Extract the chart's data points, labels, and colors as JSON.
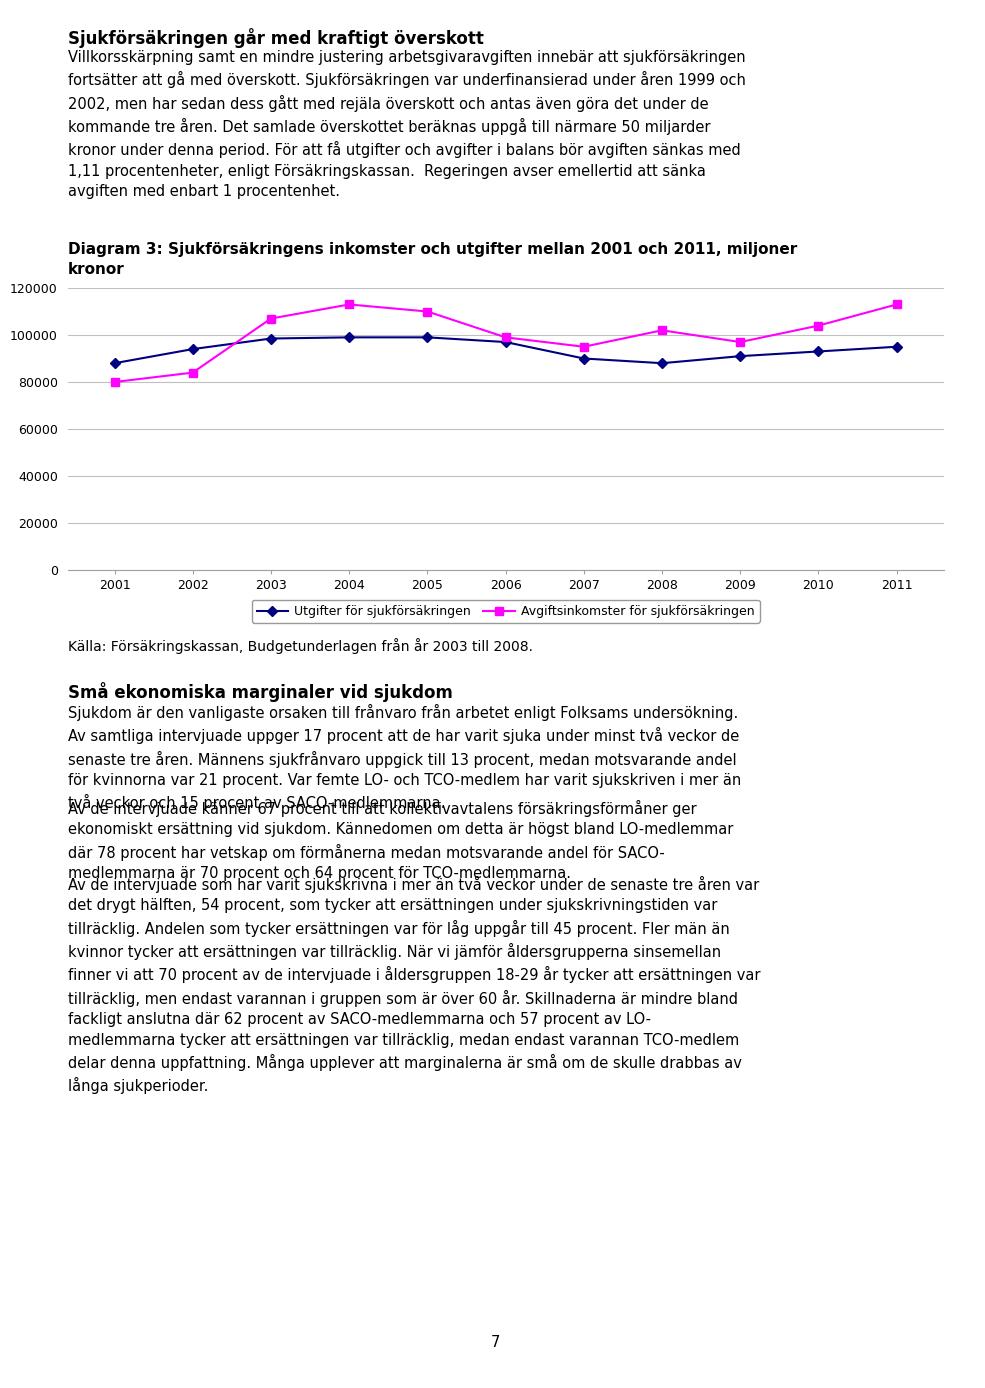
{
  "title_bold": "Sjukförsäkringen går med kraftigt överskott",
  "body_text_1": "Villkorsskärpning samt en mindre justering arbetsgivaravgiften innebär att sjukförsäkringen\nfortsätter att gå med överskott. Sjukförsäkringen var underfinansierad under åren 1999 och\n2002, men har sedan dess gått med rejäla överskott och antas även göra det under de\nkommande tre åren. Det samlade överskottet beräknas uppgå till närmare 50 miljarder\nkronor under denna period. För att få utgifter och avgifter i balans bör avgiften sänkas med\n1,11 procentenheter, enligt Försäkringskassan.  Regeringen avser emellertid att sänka\navgiften med enbart 1 procentenhet.",
  "chart_title_line1": "Diagram 3: Sjukförsäkringens inkomster och utgifter mellan 2001 och 2011, miljoner",
  "chart_title_line2": "kronor",
  "years": [
    2001,
    2002,
    2003,
    2004,
    2005,
    2006,
    2007,
    2008,
    2009,
    2010,
    2011
  ],
  "utgifter_data": [
    88000,
    94000,
    98500,
    99000,
    99000,
    97000,
    90000,
    88000,
    91000,
    93000,
    95000
  ],
  "avgift_data": [
    80000,
    84000,
    107000,
    113000,
    110000,
    99000,
    95000,
    102000,
    97000,
    104000,
    113000
  ],
  "utgifter_color": "#000080",
  "avgift_color": "#FF00FF",
  "ylim_min": 0,
  "ylim_max": 120000,
  "yticks": [
    0,
    20000,
    40000,
    60000,
    80000,
    100000,
    120000
  ],
  "ytick_labels": [
    "0",
    "20000",
    "40000",
    "60000",
    "80000",
    "100000",
    "120000"
  ],
  "legend1": "Utgifter för sjukförsäkringen",
  "legend2": "Avgiftsinkomster för sjukförsäkringen",
  "source_text": "Källa: Försäkringskassan, Budgetunderlagen från år 2003 till 2008.",
  "title_bold_2": "Små ekonomiska marginaler vid sjukdom",
  "body_text_2": "Sjukdom är den vanligaste orsaken till frånvaro från arbetet enligt Folksams undersökning.\nAv samtliga intervjuade uppger 17 procent att de har varit sjuka under minst två veckor de\nsenaste tre åren. Männens sjukfrånvaro uppgick till 13 procent, medan motsvarande andel\nför kvinnorna var 21 procent. Var femte LO- och TCO-medlem har varit sjukskriven i mer än\ntvå veckor och 15 procent av SACO-medlemmarna.",
  "body_text_3": "Av de intervjuade känner 67 procent till att kollektivavtalens försäkringsförmåner ger\nekonomiskt ersättning vid sjukdom. Kännedomen om detta är högst bland LO-medlemmar\ndär 78 procent har vetskap om förmånerna medan motsvarande andel för SACO-\nmedlemmarna är 70 procent och 64 procent för TCO-medlemmarna.",
  "body_text_4": "Av de intervjuade som har varit sjukskrivna i mer än två veckor under de senaste tre åren var\ndet drygt hälften, 54 procent, som tycker att ersättningen under sjukskrivningstiden var\ntillräcklig. Andelen som tycker ersättningen var för låg uppgår till 45 procent. Fler män än\nkvinnor tycker att ersättningen var tillräcklig. När vi jämför åldersgrupperna sinsemellan\nfinner vi att 70 procent av de intervjuade i åldersgruppen 18-29 år tycker att ersättningen var\ntillräcklig, men endast varannan i gruppen som är över 60 år. Skillnaderna är mindre bland\nfackligt anslutna där 62 procent av SACO-medlemmarna och 57 procent av LO-\nmedlemmarna tycker att ersättningen var tillräcklig, medan endast varannan TCO-medlem\ndelar denna uppfattning. Många upplever att marginalerna är små om de skulle drabbas av\nlånga sjukperioder.",
  "page_number": "7",
  "background_color": "#FFFFFF",
  "text_color": "#000000",
  "grid_color": "#C0C0C0"
}
